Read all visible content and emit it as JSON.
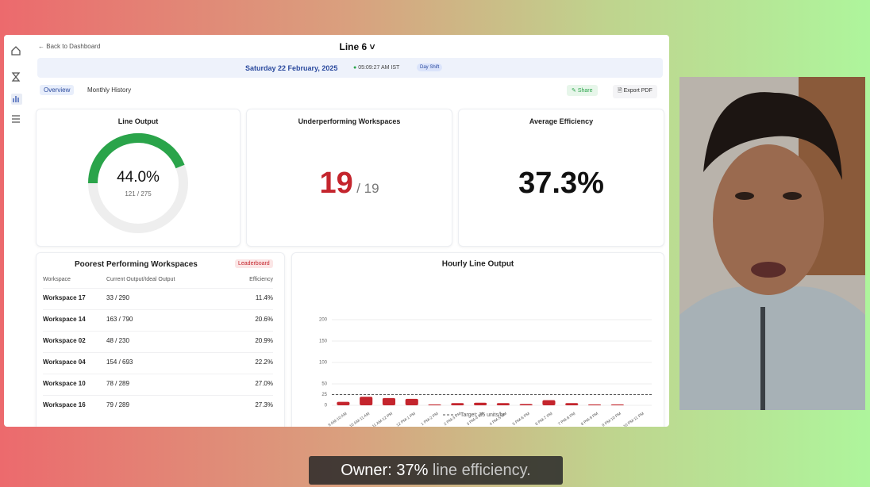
{
  "nav": {
    "back": "Back to Dashboard",
    "title": "Line 6"
  },
  "date_bar": {
    "date": "Saturday 22 February, 2025",
    "time": "05:09:27 AM IST",
    "shift": "Day Shift"
  },
  "tabs": [
    "Overview",
    "Monthly History"
  ],
  "actions": [
    "Share",
    "Export PDF"
  ],
  "cards": {
    "line_output": {
      "title": "Line Output",
      "value": 44.0,
      "value_label": "44.0%",
      "count": "121 / 275"
    },
    "underperforming": {
      "title": "Underperforming Workspaces",
      "count": "19",
      "total": "/ 19"
    },
    "average_efficiency": {
      "title": "Average Efficiency",
      "value": "37.3%"
    }
  },
  "table": {
    "title": "Poorest Performing Workspaces",
    "badge": "Leaderboard",
    "columns": [
      "Workspace",
      "Current Output/Ideal Output",
      "Efficiency"
    ],
    "rows": [
      [
        "Workspace 17",
        "33 / 290",
        "11.4%"
      ],
      [
        "Workspace 14",
        "163 / 790",
        "20.6%"
      ],
      [
        "Workspace 02",
        "48 / 230",
        "20.9%"
      ],
      [
        "Workspace 04",
        "154 / 693",
        "22.2%"
      ],
      [
        "Workspace 10",
        "78 / 289",
        "27.0%"
      ],
      [
        "Workspace 16",
        "79 / 289",
        "27.3%"
      ]
    ]
  },
  "hourly_chart": {
    "type": "bar",
    "title": "Hourly Line Output",
    "categories": [
      "9 AM-10 AM",
      "10 AM-11 AM",
      "11 AM-12 PM",
      "12 PM-1 PM",
      "1 PM-2 PM",
      "2 PM-3 PM",
      "3 PM-4 PM",
      "4 PM-5 PM",
      "5 PM-6 PM",
      "6 PM-7 PM",
      "7 PM-8 PM",
      "8 PM-9 PM",
      "9 PM-10 PM",
      "10 PM-11 PM"
    ],
    "values": [
      8,
      20,
      17,
      15,
      2,
      5,
      6,
      5,
      3,
      12,
      5,
      2,
      2,
      0
    ],
    "color": "#c4252d",
    "ylim": [
      0,
      200
    ],
    "yticks": [
      0,
      25,
      50,
      100,
      150,
      200
    ],
    "grid": true,
    "target": 25,
    "target_label": "Target: 25 units/hr"
  },
  "caption": [
    "Owner: 37%",
    "line efficiency."
  ]
}
